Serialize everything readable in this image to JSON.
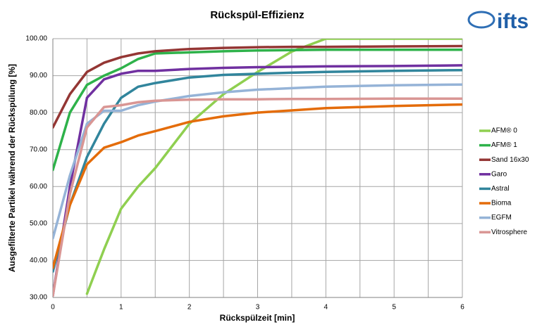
{
  "logo": "ifts",
  "chart_data": {
    "type": "line",
    "title": "Rückspül-Effizienz",
    "x_label": "Rückspülzeit [min]",
    "y_label": "Ausgefilterte Partikel während der Rückspülung [%]",
    "x": [
      0,
      0.25,
      0.5,
      0.75,
      1,
      1.25,
      1.5,
      2,
      2.5,
      3,
      3.5,
      4,
      5,
      6
    ],
    "xlim": [
      0,
      6
    ],
    "xticks": [
      0,
      1,
      2,
      3,
      4,
      5,
      6
    ],
    "x_minor_grid": [
      0.5,
      1.5,
      2.5,
      3.5,
      4.5,
      5.5
    ],
    "ylim": [
      30,
      100
    ],
    "yticks": [
      {
        "value": 30,
        "label": "30.00"
      },
      {
        "value": 40,
        "label": "40.00"
      },
      {
        "value": 50,
        "label": "50.00"
      },
      {
        "value": 60,
        "label": "60.00"
      },
      {
        "value": 70,
        "label": "70.00"
      },
      {
        "value": 80,
        "label": "80.00"
      },
      {
        "value": 90,
        "label": "90.00"
      },
      {
        "value": 100,
        "label": "100.00"
      }
    ],
    "grid": true,
    "legend": "right",
    "series": [
      {
        "name": "AFM® 0",
        "color": "#8fcf50",
        "values": [
          null,
          null,
          31,
          43,
          54,
          60,
          65,
          77,
          85,
          91,
          96.5,
          100,
          100,
          100
        ]
      },
      {
        "name": "AFM® 1",
        "color": "#2eb24a",
        "values": [
          64.5,
          80,
          87.5,
          90,
          92,
          94.5,
          96,
          96.3,
          96.6,
          96.8,
          96.9,
          97,
          97,
          97
        ]
      },
      {
        "name": "Sand 16x30",
        "color": "#943634",
        "values": [
          76,
          85,
          91,
          93.5,
          95,
          96,
          96.6,
          97.2,
          97.5,
          97.7,
          97.8,
          97.8,
          97.9,
          98
        ]
      },
      {
        "name": "Garo",
        "color": "#7030a0",
        "values": [
          30.5,
          60,
          84,
          89,
          90.5,
          91.3,
          91.3,
          91.8,
          92.1,
          92.3,
          92.4,
          92.5,
          92.6,
          92.8
        ]
      },
      {
        "name": "Astral",
        "color": "#31859c",
        "values": [
          37,
          55,
          68,
          77,
          84,
          87,
          88,
          89.5,
          90.2,
          90.5,
          90.8,
          91,
          91.3,
          91.5
        ]
      },
      {
        "name": "Bioma",
        "color": "#e46c0a",
        "values": [
          38,
          55,
          66,
          70.5,
          72,
          73.8,
          75,
          77.5,
          79,
          80,
          80.6,
          81.2,
          81.8,
          82.2
        ]
      },
      {
        "name": "EGFM",
        "color": "#95b3d7",
        "values": [
          46,
          63,
          77,
          80.5,
          80.5,
          82,
          83,
          84.5,
          85.5,
          86.2,
          86.6,
          87,
          87.4,
          87.6
        ]
      },
      {
        "name": "Vitrosphere",
        "color": "#d99694",
        "values": [
          30.5,
          58,
          76,
          81.5,
          82,
          82.8,
          83.2,
          83.5,
          83.6,
          83.6,
          83.7,
          83.7,
          83.8,
          83.8
        ]
      }
    ]
  }
}
